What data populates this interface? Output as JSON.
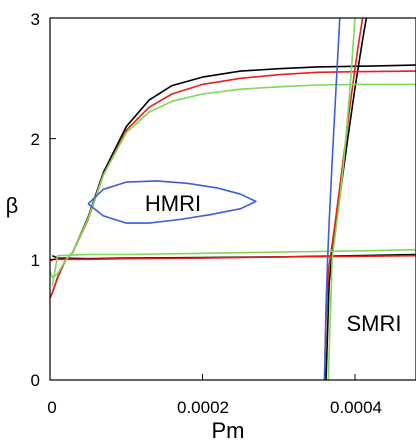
{
  "chart_data": {
    "type": "line",
    "xlabel": "Pm",
    "ylabel": "β",
    "xlim": [
      0,
      0.00048
    ],
    "ylim": [
      0,
      3
    ],
    "x_ticks": [
      0,
      0.0002,
      0.0004
    ],
    "x_tick_labels": [
      "0",
      "0.0002",
      "0.0004"
    ],
    "y_ticks": [
      0,
      1,
      2,
      3
    ],
    "y_tick_labels": [
      "0",
      "1",
      "2",
      "3"
    ],
    "grid": false,
    "annotations": [
      {
        "text": "HMRI",
        "x": 0.00015,
        "y": 1.47
      },
      {
        "text": "SMRI",
        "x": 0.00042,
        "y": 0.48
      }
    ],
    "colors": {
      "black": "#000000",
      "red": "#e8201c",
      "green": "#7ed957",
      "blue": "#3a5fd9"
    },
    "series": [
      {
        "color": "black",
        "curve": "upper",
        "x": [
          0.0,
          3e-06,
          1e-05,
          2e-05,
          3e-05,
          5e-05,
          7e-05,
          0.0001,
          0.00013,
          0.00016,
          0.0002,
          0.00025,
          0.0003,
          0.00035,
          0.0004,
          0.00048
        ],
        "y": [
          0.68,
          0.72,
          0.85,
          0.99,
          1.06,
          1.35,
          1.72,
          2.1,
          2.32,
          2.44,
          2.51,
          2.56,
          2.58,
          2.595,
          2.6,
          2.61
        ]
      },
      {
        "color": "black",
        "curve": "lower",
        "x": [
          3e-06,
          1e-05,
          5e-05,
          0.0001,
          0.0002,
          0.0003,
          0.0004,
          0.00048
        ],
        "y": [
          1.03,
          1.01,
          1.005,
          1.01,
          1.015,
          1.02,
          1.03,
          1.04
        ]
      },
      {
        "color": "black",
        "curve": "smri",
        "x": [
          0.000362,
          0.000364,
          0.000366,
          0.00037,
          0.000375,
          0.00038,
          0.000385,
          0.00039,
          0.000395,
          0.0004,
          0.000405,
          0.00041,
          0.000415
        ],
        "y": [
          0.0,
          0.4,
          0.8,
          1.05,
          1.28,
          1.52,
          1.75,
          1.98,
          2.2,
          2.42,
          2.62,
          2.82,
          3.0
        ]
      },
      {
        "color": "red",
        "curve": "upper",
        "x": [
          0.0,
          3e-06,
          1e-05,
          2e-05,
          3e-05,
          5e-05,
          7e-05,
          0.0001,
          0.00013,
          0.00016,
          0.0002,
          0.00025,
          0.0003,
          0.00035,
          0.0004,
          0.00048
        ],
        "y": [
          0.68,
          0.72,
          0.85,
          0.99,
          1.06,
          1.33,
          1.7,
          2.07,
          2.26,
          2.37,
          2.45,
          2.5,
          2.53,
          2.55,
          2.555,
          2.56
        ]
      },
      {
        "color": "red",
        "curve": "lower",
        "x": [
          0.0,
          3e-06,
          4e-06,
          1e-05,
          5e-05,
          0.0001,
          0.0002,
          0.0003,
          0.0004,
          0.00048
        ],
        "y": [
          0.99,
          0.99,
          1.0,
          1.0,
          1.0,
          1.005,
          1.01,
          1.02,
          1.025,
          1.03
        ]
      },
      {
        "color": "red",
        "curve": "smri",
        "x": [
          0.00036,
          0.000362,
          0.000365,
          0.00037,
          0.000375,
          0.00038,
          0.000385,
          0.00039,
          0.000395,
          0.0004,
          0.000405,
          0.00041
        ],
        "y": [
          0.0,
          0.5,
          0.9,
          1.12,
          1.35,
          1.6,
          1.85,
          2.1,
          2.35,
          2.58,
          2.8,
          3.0
        ]
      },
      {
        "color": "green",
        "curve": "upper",
        "x": [
          0.0,
          3e-06,
          1e-05,
          2e-05,
          3e-05,
          5e-05,
          7e-05,
          0.0001,
          0.00013,
          0.00016,
          0.0002,
          0.00025,
          0.0003,
          0.00035,
          0.0004,
          0.00048
        ],
        "y": [
          0.9,
          0.85,
          0.88,
          0.99,
          1.06,
          1.34,
          1.7,
          2.05,
          2.22,
          2.31,
          2.37,
          2.41,
          2.43,
          2.445,
          2.45,
          2.45
        ]
      },
      {
        "color": "green",
        "curve": "lower",
        "x": [
          3e-06,
          1e-05,
          3e-05,
          5e-05,
          0.0001,
          0.0002,
          0.0003,
          0.0004,
          0.00048
        ],
        "y": [
          0.78,
          1.03,
          1.035,
          1.04,
          1.04,
          1.05,
          1.06,
          1.07,
          1.08
        ]
      },
      {
        "color": "green",
        "curve": "smri",
        "x": [
          0.000365,
          0.000368,
          0.00037,
          0.000375,
          0.00038,
          0.000385,
          0.00039,
          0.000395,
          0.0004
        ],
        "y": [
          0.0,
          0.6,
          1.0,
          1.25,
          1.5,
          1.8,
          2.15,
          2.55,
          3.0
        ]
      },
      {
        "color": "blue",
        "curve": "hmri-loop",
        "x": [
          5e-05,
          7e-05,
          0.0001,
          0.00014,
          0.00018,
          0.00022,
          0.00025,
          0.00027,
          0.00025,
          0.00021,
          0.00017,
          0.00013,
          0.0001,
          7e-05,
          5e-05
        ],
        "y": [
          1.46,
          1.58,
          1.64,
          1.65,
          1.63,
          1.59,
          1.54,
          1.48,
          1.42,
          1.37,
          1.33,
          1.3,
          1.3,
          1.36,
          1.46
        ]
      },
      {
        "color": "blue",
        "curve": "smri",
        "x": [
          0.00036,
          0.000362,
          0.000364,
          0.000366,
          0.00037,
          0.000375,
          0.00038
        ],
        "y": [
          0.0,
          0.6,
          1.0,
          1.3,
          1.8,
          2.4,
          3.0
        ]
      }
    ]
  }
}
